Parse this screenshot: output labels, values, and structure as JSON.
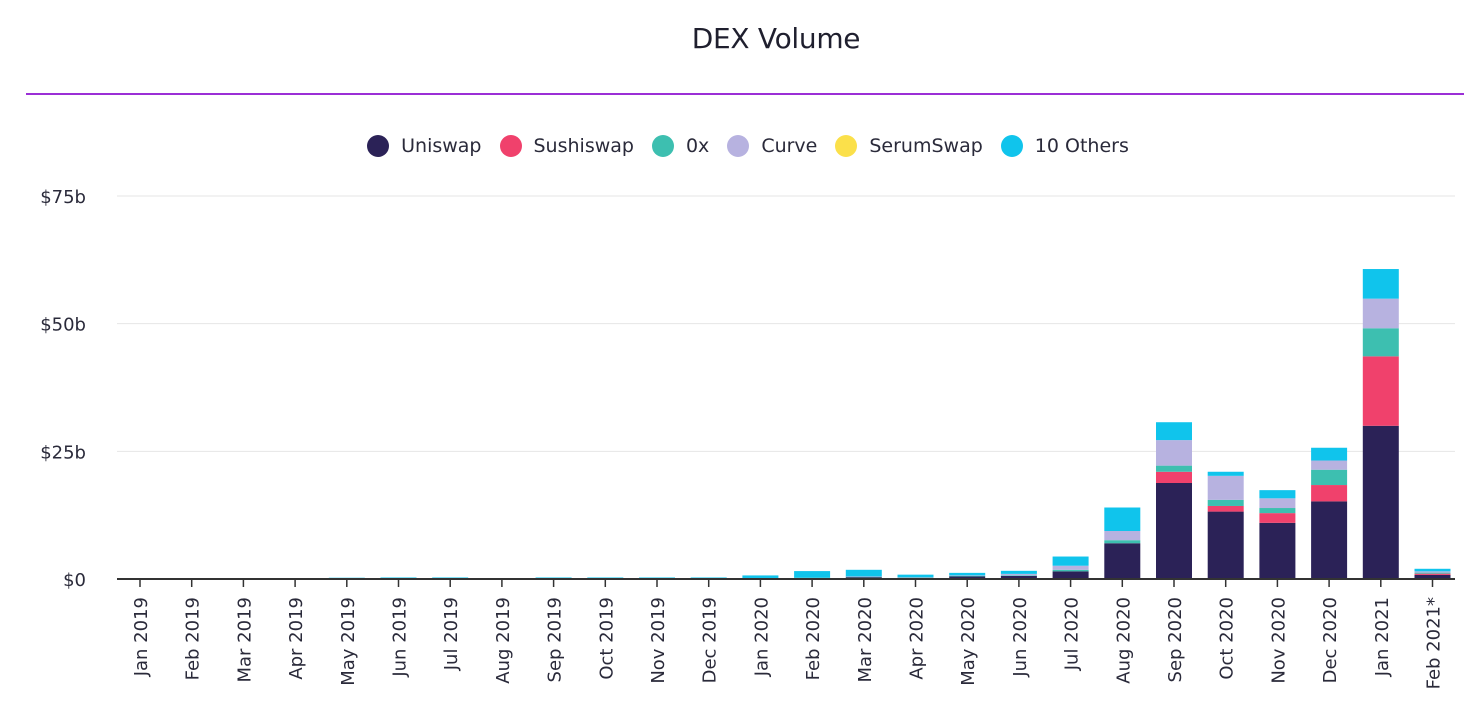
{
  "chart_data": {
    "type": "bar",
    "stacked": true,
    "title": "DEX Volume",
    "xlabel": "",
    "ylabel": "",
    "ylim": [
      0,
      75
    ],
    "yticks": [
      0,
      25,
      50,
      75
    ],
    "ytick_labels": [
      "$0",
      "$25b",
      "$50b",
      "$75b"
    ],
    "grid": true,
    "legend_position": "top-center",
    "categories": [
      "Jan 2019",
      "Feb 2019",
      "Mar 2019",
      "Apr 2019",
      "May 2019",
      "Jun 2019",
      "Jul 2019",
      "Aug 2019",
      "Sep 2019",
      "Oct 2019",
      "Nov 2019",
      "Dec 2019",
      "Jan 2020",
      "Feb 2020",
      "Mar 2020",
      "Apr 2020",
      "May 2020",
      "Jun 2020",
      "Jul 2020",
      "Aug 2020",
      "Sep 2020",
      "Oct 2020",
      "Nov 2020",
      "Dec 2020",
      "Jan 2021",
      "Feb 2021*"
    ],
    "series": [
      {
        "name": "Uniswap",
        "color": "#2b2257",
        "values": [
          0.01,
          0.01,
          0.01,
          0.02,
          0.05,
          0.05,
          0.05,
          0.04,
          0.05,
          0.05,
          0.05,
          0.05,
          0.1,
          0.15,
          0.35,
          0.25,
          0.5,
          0.6,
          1.5,
          7.0,
          18.8,
          13.2,
          11.0,
          15.2,
          30.0,
          0.8
        ]
      },
      {
        "name": "Sushiswap",
        "color": "#f0416c",
        "values": [
          0,
          0,
          0,
          0,
          0,
          0,
          0,
          0,
          0,
          0,
          0,
          0,
          0,
          0,
          0,
          0,
          0,
          0,
          0,
          0,
          2.2,
          1.1,
          1.9,
          3.2,
          13.6,
          0.25
        ]
      },
      {
        "name": "0x",
        "color": "#3dbfb0",
        "values": [
          0.01,
          0.01,
          0.01,
          0.01,
          0.05,
          0.05,
          0.05,
          0.04,
          0.05,
          0.05,
          0.05,
          0.05,
          0.1,
          0.1,
          0.1,
          0.05,
          0.1,
          0.1,
          0.3,
          0.6,
          1.2,
          1.2,
          1.0,
          3.0,
          5.5,
          0.2
        ]
      },
      {
        "name": "Curve",
        "color": "#b7b2e0",
        "values": [
          0,
          0,
          0,
          0,
          0,
          0,
          0,
          0,
          0,
          0,
          0,
          0,
          0,
          0,
          0.05,
          0.05,
          0.1,
          0.3,
          0.8,
          1.8,
          5.0,
          4.7,
          1.9,
          1.8,
          5.8,
          0.25
        ]
      },
      {
        "name": "SerumSwap",
        "color": "#fbe04a",
        "values": [
          0,
          0,
          0,
          0,
          0,
          0,
          0,
          0,
          0,
          0,
          0,
          0,
          0,
          0,
          0,
          0,
          0,
          0,
          0,
          0,
          0,
          0,
          0,
          0,
          0,
          0
        ]
      },
      {
        "name": "10 Others",
        "color": "#10c4ec",
        "values": [
          0.02,
          0.02,
          0.02,
          0.03,
          0.15,
          0.2,
          0.2,
          0.05,
          0.2,
          0.2,
          0.2,
          0.2,
          0.5,
          1.3,
          1.3,
          0.5,
          0.5,
          0.6,
          1.8,
          4.6,
          3.5,
          0.8,
          1.6,
          2.5,
          5.8,
          0.5
        ]
      }
    ]
  }
}
